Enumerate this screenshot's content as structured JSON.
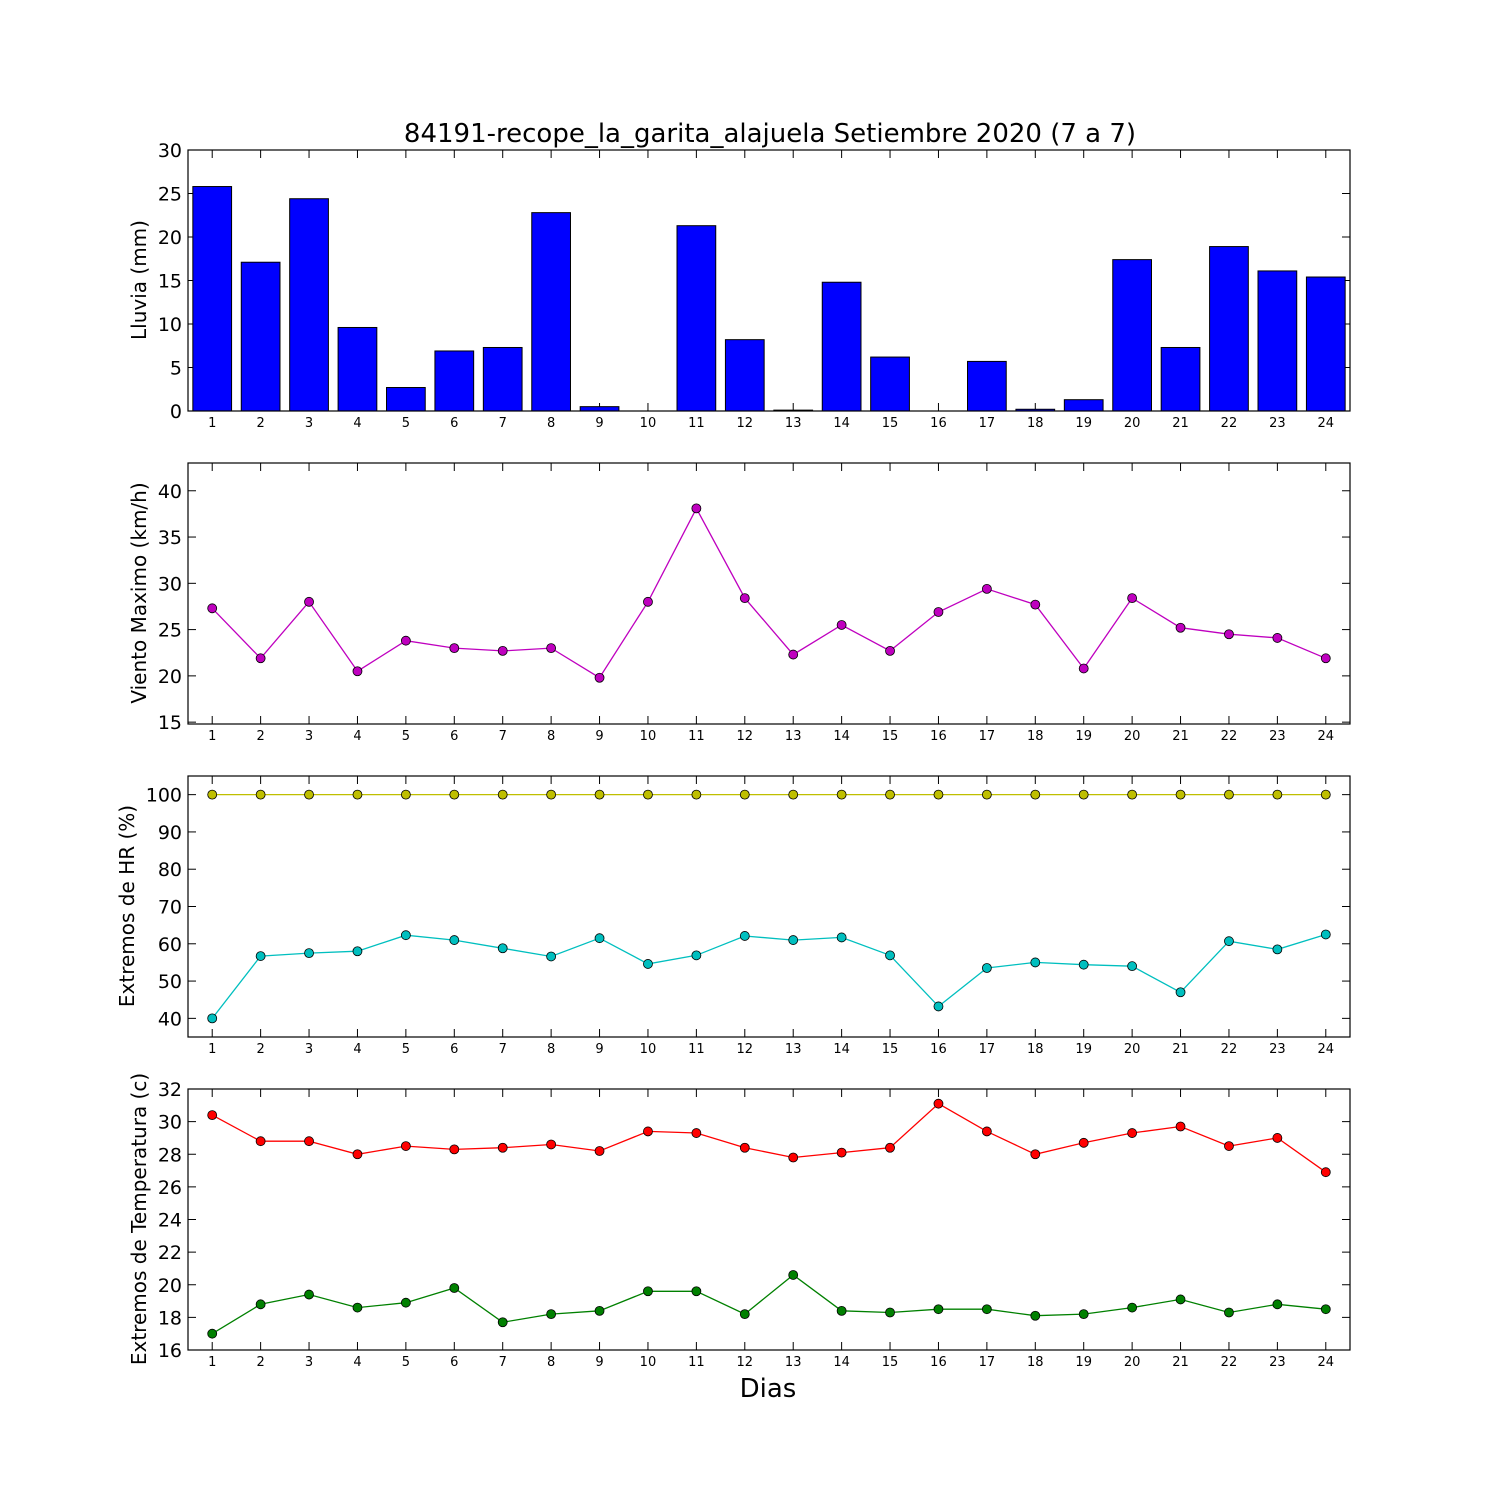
{
  "title": "84191-recope_la_garita_alajuela Setiembre 2020  (7 a 7)",
  "xlabel": "Dias",
  "chart_data": [
    {
      "type": "bar",
      "ylabel": "Lluvia (mm)",
      "ylim": [
        0,
        30
      ],
      "yticks": [
        0,
        5,
        10,
        15,
        20,
        25,
        30
      ],
      "x": [
        1,
        2,
        3,
        4,
        5,
        6,
        7,
        8,
        9,
        10,
        11,
        12,
        13,
        14,
        15,
        16,
        17,
        18,
        19,
        20,
        21,
        22,
        23,
        24
      ],
      "values": [
        25.8,
        17.1,
        24.4,
        9.6,
        2.7,
        6.9,
        7.3,
        22.8,
        0.5,
        0.0,
        21.3,
        8.2,
        0.1,
        14.8,
        6.2,
        0.0,
        5.7,
        0.2,
        1.3,
        17.4,
        7.3,
        18.9,
        16.1,
        15.4
      ],
      "color": "#0000ff"
    },
    {
      "type": "line",
      "ylabel": "Viento Maximo (km/h)",
      "ylim": [
        14.8,
        43
      ],
      "yticks": [
        15,
        20,
        25,
        30,
        35,
        40
      ],
      "x": [
        1,
        2,
        3,
        4,
        5,
        6,
        7,
        8,
        9,
        10,
        11,
        12,
        13,
        14,
        15,
        16,
        17,
        18,
        19,
        20,
        21,
        22,
        23,
        24
      ],
      "series": [
        {
          "values": [
            27.3,
            21.9,
            28.0,
            20.5,
            23.8,
            23.0,
            22.7,
            23.0,
            19.8,
            28.0,
            38.1,
            28.4,
            22.3,
            25.5,
            22.7,
            26.9,
            29.4,
            27.7,
            20.8,
            28.4,
            25.2,
            24.5,
            24.1,
            21.9
          ],
          "color": "#bf00bf"
        }
      ]
    },
    {
      "type": "line",
      "ylabel": "Extremos de HR (%)",
      "ylim": [
        35,
        105
      ],
      "yticks": [
        40,
        50,
        60,
        70,
        80,
        90,
        100
      ],
      "x": [
        1,
        2,
        3,
        4,
        5,
        6,
        7,
        8,
        9,
        10,
        11,
        12,
        13,
        14,
        15,
        16,
        17,
        18,
        19,
        20,
        21,
        22,
        23,
        24
      ],
      "series": [
        {
          "values": [
            100,
            100,
            100,
            100,
            100,
            100,
            100,
            100,
            100,
            100,
            100,
            100,
            100,
            100,
            100,
            100,
            100,
            100,
            100,
            100,
            100,
            100,
            100,
            100
          ],
          "color": "#bfbf00"
        },
        {
          "values": [
            40.0,
            56.7,
            57.5,
            58.0,
            62.3,
            61.0,
            58.8,
            56.6,
            61.5,
            54.6,
            56.9,
            62.1,
            61.0,
            61.7,
            56.9,
            43.2,
            53.5,
            55.0,
            54.4,
            54.0,
            47.0,
            60.7,
            58.5,
            62.5
          ],
          "color": "#00bfbf"
        }
      ]
    },
    {
      "type": "line",
      "ylabel": "Extremos de Temperatura (c)",
      "ylim": [
        16,
        32
      ],
      "yticks": [
        16,
        18,
        20,
        22,
        24,
        26,
        28,
        30,
        32
      ],
      "x": [
        1,
        2,
        3,
        4,
        5,
        6,
        7,
        8,
        9,
        10,
        11,
        12,
        13,
        14,
        15,
        16,
        17,
        18,
        19,
        20,
        21,
        22,
        23,
        24
      ],
      "series": [
        {
          "values": [
            30.4,
            28.8,
            28.8,
            28.0,
            28.5,
            28.3,
            28.4,
            28.6,
            28.2,
            29.4,
            29.3,
            28.4,
            27.8,
            28.1,
            28.4,
            31.1,
            29.4,
            28.0,
            28.7,
            29.3,
            29.7,
            28.5,
            29.0,
            26.9
          ],
          "color": "#ff0000"
        },
        {
          "values": [
            17.0,
            18.8,
            19.4,
            18.6,
            18.9,
            19.8,
            17.7,
            18.2,
            18.4,
            19.6,
            19.6,
            18.2,
            20.6,
            18.4,
            18.3,
            18.5,
            18.5,
            18.1,
            18.2,
            18.6,
            19.1,
            18.3,
            18.8,
            18.5
          ],
          "color": "#008000"
        }
      ]
    }
  ]
}
